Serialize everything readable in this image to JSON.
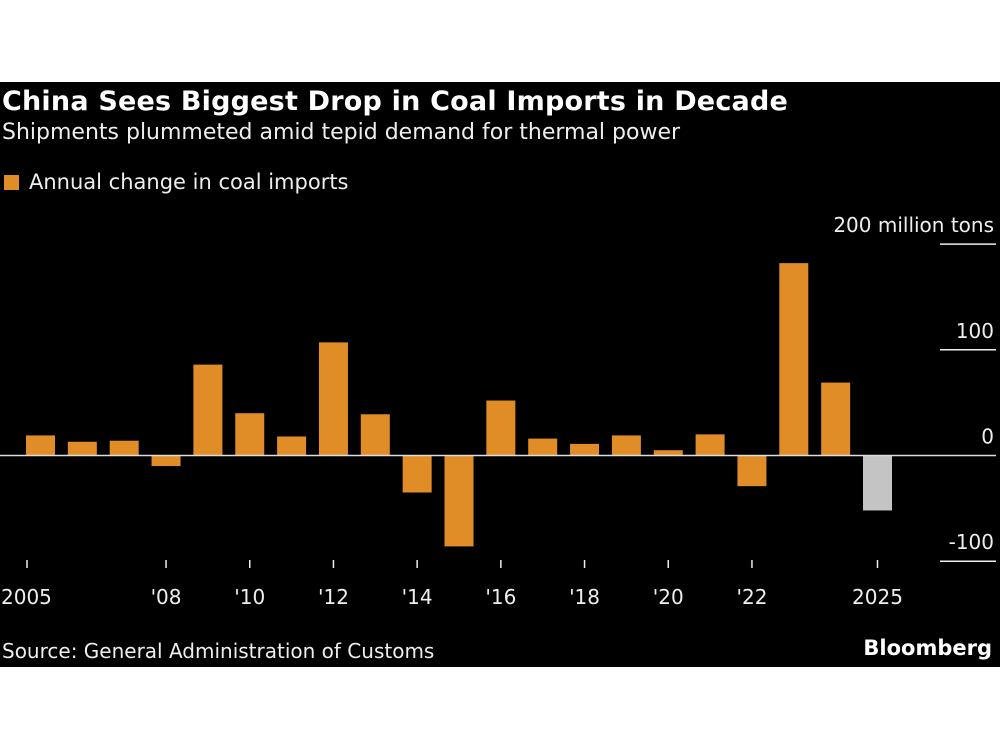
{
  "chart_data": {
    "type": "bar",
    "title": "China Sees Biggest Drop in Coal Imports in Decade",
    "subtitle": "Shipments plummeted amid tepid demand for thermal power",
    "legend": [
      {
        "name": "Annual change in coal imports",
        "color": "#e08c27"
      }
    ],
    "legend_placement": "top-left",
    "categories": [
      "2005",
      "2006",
      "2007",
      "2008",
      "2009",
      "2010",
      "2011",
      "2012",
      "2013",
      "2014",
      "2015",
      "2016",
      "2017",
      "2018",
      "2019",
      "2020",
      "2021",
      "2022",
      "2023",
      "2024",
      "2025"
    ],
    "series": [
      {
        "name": "Annual change in coal imports",
        "values": [
          19,
          13,
          14,
          -10,
          86,
          40,
          18,
          107,
          39,
          -35,
          -86,
          52,
          16,
          11,
          19,
          5,
          20,
          -29,
          182,
          69,
          -52
        ]
      }
    ],
    "highlight": {
      "category": "2025",
      "color": "#c4c4c4"
    },
    "bar_color": "#e08c27",
    "x_tick_labels": [
      {
        "category": "2005",
        "label": "2005"
      },
      {
        "category": "2008",
        "label": "'08"
      },
      {
        "category": "2010",
        "label": "'10"
      },
      {
        "category": "2012",
        "label": "'12"
      },
      {
        "category": "2014",
        "label": "'14"
      },
      {
        "category": "2016",
        "label": "'16"
      },
      {
        "category": "2018",
        "label": "'18"
      },
      {
        "category": "2020",
        "label": "'20"
      },
      {
        "category": "2022",
        "label": "'22"
      },
      {
        "category": "2025",
        "label": "2025"
      }
    ],
    "y_ticks": [
      {
        "value": 200,
        "label": "200 million tons"
      },
      {
        "value": 100,
        "label": "100"
      },
      {
        "value": 0,
        "label": "0"
      },
      {
        "value": -100,
        "label": "-100"
      }
    ],
    "ylim": [
      -100,
      200
    ],
    "ylabel": "",
    "xlabel": "",
    "grid": false,
    "y_axis_position": "right"
  },
  "source": "Source: General Administration of Customs",
  "brand": "Bloomberg"
}
